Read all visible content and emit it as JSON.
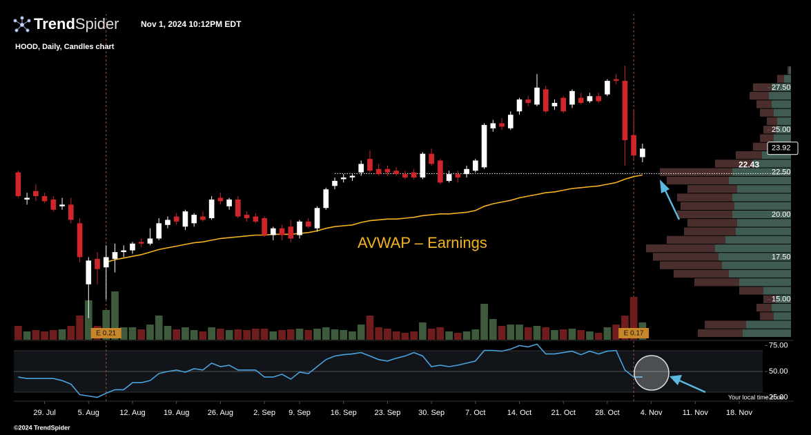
{
  "header": {
    "logo_bold": "Trend",
    "logo_light": "Spider",
    "timestamp": "Nov 1, 2024 10:12PM EDT",
    "subtitle": "HOOD, Daily, Candles chart",
    "footer": "©2024 TrendSpider",
    "timezone_note": "Your local time zone"
  },
  "chart_data": {
    "type": "candlestick",
    "open": [
      22.5,
      20.9,
      21.4,
      21.1,
      20.9,
      20.5,
      20.6,
      19.5,
      15.9,
      17.4,
      16.9,
      17.4,
      17.8,
      17.9,
      18.4,
      18.3,
      18.6,
      19.4,
      19.9,
      19.3,
      19.5,
      19.9,
      19.8,
      21.0,
      20.5,
      20.9,
      20.0,
      19.9,
      19.8,
      18.8,
      19.2,
      19.3,
      18.8,
      19.6,
      19.2,
      20.4,
      21.7,
      22.1,
      22.2,
      22.5,
      23.3,
      22.7,
      22.7,
      22.6,
      22.4,
      22.5,
      22.2,
      23.6,
      23.2,
      22.0,
      22.4,
      22.4,
      22.6,
      22.8,
      25.1,
      25.4,
      25.1,
      26.1,
      26.8,
      26.5,
      27.4,
      26.4,
      26.9,
      26.5,
      26.9,
      26.7,
      27.0,
      27.1,
      28.0,
      27.9,
      24.7,
      23.4
    ],
    "high": [
      22.6,
      21.3,
      21.8,
      21.3,
      21.1,
      21.0,
      21.0,
      19.8,
      17.5,
      17.8,
      18.2,
      18.3,
      18.2,
      18.4,
      18.6,
      19.2,
      19.8,
      19.9,
      20.1,
      20.3,
      20.1,
      20.2,
      21.1,
      21.3,
      21.0,
      21.1,
      20.2,
      20.1,
      19.9,
      19.3,
      19.4,
      19.7,
      19.7,
      19.8,
      20.5,
      21.6,
      22.2,
      22.4,
      22.4,
      23.2,
      23.8,
      23.0,
      22.9,
      22.8,
      22.6,
      22.7,
      23.7,
      23.9,
      23.3,
      22.6,
      22.6,
      22.9,
      23.3,
      25.4,
      25.6,
      25.7,
      26.1,
      26.9,
      27.0,
      28.3,
      27.6,
      26.8,
      27.0,
      27.4,
      27.2,
      27.2,
      27.2,
      28.0,
      28.3,
      28.8,
      26.2,
      24.2
    ],
    "low": [
      21.0,
      20.6,
      20.8,
      20.7,
      20.2,
      20.3,
      19.5,
      17.2,
      13.9,
      15.9,
      15.0,
      16.6,
      17.5,
      17.7,
      18.1,
      18.2,
      18.5,
      19.2,
      19.4,
      19.1,
      19.3,
      19.6,
      19.7,
      20.6,
      20.3,
      19.8,
      19.6,
      19.5,
      18.7,
      18.5,
      18.5,
      18.4,
      18.6,
      19.2,
      19.0,
      20.3,
      21.5,
      21.9,
      22.0,
      22.3,
      22.5,
      22.3,
      22.3,
      22.3,
      22.1,
      22.1,
      22.1,
      22.9,
      21.8,
      21.9,
      21.9,
      22.2,
      22.5,
      22.7,
      24.9,
      25.0,
      25.0,
      25.9,
      26.4,
      26.4,
      26.0,
      26.2,
      26.0,
      26.3,
      26.5,
      26.6,
      26.6,
      27.0,
      27.7,
      22.9,
      23.3,
      23.1
    ],
    "close": [
      21.1,
      21.0,
      21.1,
      20.8,
      20.3,
      20.6,
      19.7,
      17.5,
      17.3,
      16.8,
      17.5,
      17.8,
      17.9,
      18.3,
      18.3,
      18.6,
      19.5,
      19.7,
      19.6,
      20.2,
      20.0,
      19.7,
      20.9,
      20.8,
      20.9,
      19.9,
      19.8,
      19.6,
      18.8,
      19.2,
      18.8,
      18.6,
      19.6,
      19.3,
      20.4,
      21.5,
      22.0,
      22.2,
      22.3,
      23.0,
      22.6,
      22.4,
      22.5,
      22.4,
      22.2,
      22.2,
      23.6,
      23.0,
      21.9,
      22.4,
      22.2,
      22.7,
      23.2,
      25.3,
      25.4,
      25.2,
      25.9,
      26.8,
      26.6,
      27.5,
      26.1,
      26.6,
      26.1,
      27.3,
      26.6,
      27.0,
      26.7,
      27.9,
      27.9,
      24.4,
      23.5,
      23.9
    ],
    "volume": [
      20,
      12,
      14,
      12,
      14,
      15,
      20,
      35,
      57,
      20,
      43,
      70,
      18,
      18,
      15,
      22,
      35,
      20,
      15,
      18,
      14,
      12,
      18,
      16,
      14,
      15,
      14,
      16,
      16,
      12,
      14,
      15,
      16,
      14,
      16,
      18,
      15,
      14,
      12,
      22,
      35,
      18,
      16,
      12,
      10,
      12,
      25,
      16,
      18,
      12,
      10,
      12,
      15,
      52,
      30,
      20,
      22,
      22,
      18,
      20,
      18,
      14,
      15,
      16,
      14,
      12,
      10,
      18,
      22,
      35,
      62,
      25
    ],
    "vlim": [
      0,
      72
    ],
    "avwap": [
      null,
      null,
      null,
      null,
      null,
      null,
      null,
      null,
      null,
      null,
      17.2,
      17.35,
      17.45,
      17.55,
      17.65,
      17.8,
      17.95,
      18.05,
      18.15,
      18.25,
      18.35,
      18.4,
      18.5,
      18.6,
      18.65,
      18.7,
      18.75,
      18.8,
      18.8,
      18.85,
      18.85,
      18.85,
      18.9,
      18.95,
      19.05,
      19.2,
      19.3,
      19.35,
      19.4,
      19.55,
      19.65,
      19.7,
      19.75,
      19.75,
      19.8,
      19.85,
      19.95,
      20.0,
      20.05,
      20.05,
      20.1,
      20.15,
      20.25,
      20.5,
      20.65,
      20.75,
      20.85,
      21.0,
      21.1,
      21.2,
      21.3,
      21.35,
      21.45,
      21.55,
      21.6,
      21.65,
      21.7,
      21.8,
      21.9,
      22.1,
      22.25,
      22.35
    ],
    "avwap_label": "AVWAP – Earnings",
    "avwap_color": "#f5b41e",
    "rsi": [
      44.6,
      43.2,
      43.2,
      43.2,
      43.2,
      41.2,
      37.8,
      27.7,
      26.3,
      25.0,
      29.0,
      32.4,
      32.4,
      39.2,
      39.2,
      41.2,
      48.0,
      50,
      51.4,
      49.3,
      52.7,
      51.4,
      58.1,
      54.7,
      56.1,
      51.4,
      51.4,
      51.4,
      44.6,
      44.6,
      47.3,
      42.6,
      49.3,
      48.0,
      54.7,
      61.5,
      64.9,
      66.2,
      66.9,
      68.3,
      64.9,
      61.5,
      60.1,
      62.8,
      64.9,
      68.3,
      64.9,
      54.7,
      56.1,
      54.7,
      56.1,
      58.1,
      60.1,
      70.3,
      70.3,
      69.6,
      71.6,
      75.0,
      73.7,
      76.4,
      66.9,
      66.9,
      68.3,
      69.6,
      66.2,
      69.6,
      66.9,
      69.6,
      70.3,
      51.4,
      44.6,
      44.6
    ],
    "rsi_color": "#4aa3df",
    "rsilim": [
      22,
      78
    ],
    "rsi_bands": [
      30,
      70
    ],
    "rsiticks": [
      {
        "value": 75,
        "label": "75.00"
      },
      {
        "value": 50,
        "label": "50.00"
      },
      {
        "value": 25,
        "label": "25.00"
      }
    ],
    "up_color": "#ffffff",
    "down_color": "#d0262b",
    "vol_up_color": "#3e5a3c",
    "vol_down_color": "#6e1c1c",
    "ylim": [
      12.63,
      28.8
    ],
    "yticks": [
      {
        "value": 27.5,
        "label": "27.50"
      },
      {
        "value": 25,
        "label": "25.00"
      },
      {
        "value": 22.5,
        "label": "22.50"
      },
      {
        "value": 20,
        "label": "20.00"
      },
      {
        "value": 17.5,
        "label": "17.50"
      },
      {
        "value": 15,
        "label": "15.00"
      }
    ],
    "xlim": [
      -0.5,
      88.2
    ],
    "xticks": [
      {
        "value": 3,
        "label": "29. Jul"
      },
      {
        "value": 8,
        "label": "5. Aug"
      },
      {
        "value": 13,
        "label": "12. Aug"
      },
      {
        "value": 18,
        "label": "19. Aug"
      },
      {
        "value": 23,
        "label": "26. Aug"
      },
      {
        "value": 28,
        "label": "2. Sep"
      },
      {
        "value": 32,
        "label": "9. Sep"
      },
      {
        "value": 37,
        "label": "16. Sep"
      },
      {
        "value": 42,
        "label": "23. Sep"
      },
      {
        "value": 47,
        "label": "30. Sep"
      },
      {
        "value": 52,
        "label": "7. Oct"
      },
      {
        "value": 57,
        "label": "14. Oct"
      },
      {
        "value": 62,
        "label": "21. Oct"
      },
      {
        "value": 67,
        "label": "28. Oct"
      },
      {
        "value": 72,
        "label": "4. Nov"
      },
      {
        "value": 77,
        "label": "11. Nov"
      },
      {
        "value": 82,
        "label": "18. Nov"
      }
    ],
    "earnings": [
      {
        "x": 10,
        "label": "E 0.21"
      },
      {
        "x": 70,
        "label": "E 0.17"
      }
    ],
    "level": 22.43,
    "last_price": 23.92,
    "volume_profile": {
      "prices": [
        13,
        13.5,
        14,
        14.5,
        15,
        15.5,
        16,
        16.5,
        17,
        17.5,
        18,
        18.5,
        19,
        19.5,
        20,
        20.5,
        21,
        21.5,
        22,
        22.5,
        23,
        23.5,
        24,
        24.5,
        25,
        25.5,
        26,
        26.5,
        27,
        27.5,
        28,
        28.5
      ],
      "up": [
        70,
        65,
        25,
        28,
        22,
        40,
        75,
        90,
        100,
        105,
        110,
        95,
        80,
        78,
        85,
        82,
        85,
        78,
        90,
        85,
        55,
        42,
        30,
        25,
        22,
        20,
        25,
        28,
        32,
        28,
        10,
        3
      ],
      "down": [
        65,
        60,
        20,
        22,
        18,
        35,
        65,
        80,
        90,
        95,
        100,
        85,
        75,
        72,
        80,
        78,
        80,
        72,
        90,
        105,
        55,
        38,
        25,
        20,
        18,
        15,
        20,
        22,
        28,
        27,
        10,
        2
      ],
      "lim": [
        0,
        220
      ],
      "up_color": "#3f5b52",
      "down_color": "#4a2e2e"
    }
  }
}
